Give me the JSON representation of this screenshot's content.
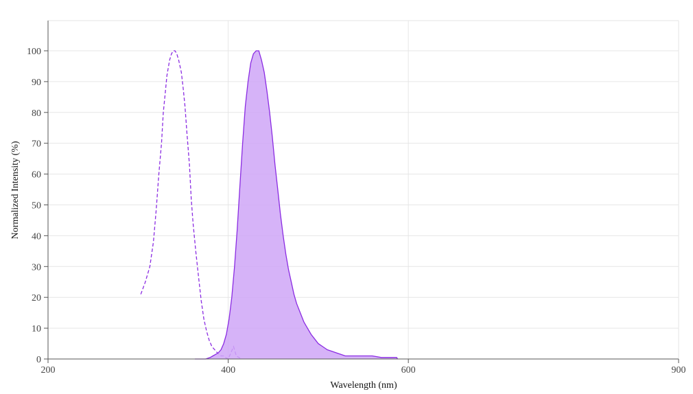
{
  "chart_data": {
    "type": "area",
    "title": "",
    "xlabel": "Wavelength (nm)",
    "ylabel": "Normalized Intensity (%)",
    "xlim": [
      200,
      900
    ],
    "ylim": [
      0,
      100
    ],
    "x_ticks": [
      200,
      400,
      600,
      900
    ],
    "y_ticks": [
      0,
      10,
      20,
      30,
      40,
      50,
      60,
      70,
      80,
      90,
      100
    ],
    "grid": true,
    "legend": "none",
    "colors": {
      "line": "#8a2be2",
      "fill": "#cfa6f7",
      "grid": "#e6e6e6",
      "axis": "#555555"
    },
    "series": [
      {
        "style": "dashed",
        "x": [
          303,
          308,
          313,
          317,
          320,
          323,
          326,
          328,
          330,
          332,
          335,
          337,
          339,
          341,
          343,
          345,
          348,
          350,
          352,
          354,
          357,
          359,
          361,
          364,
          367,
          370,
          373,
          376,
          379,
          382,
          385,
          388,
          390,
          392,
          395,
          397,
          400,
          403,
          406,
          409,
          412,
          415
        ],
        "y": [
          21,
          25,
          30,
          38,
          48,
          60,
          70,
          80,
          86,
          92,
          97,
          99,
          100,
          100,
          99,
          97,
          93,
          88,
          82,
          74,
          63,
          52,
          44,
          35,
          27,
          19,
          13,
          9,
          6,
          4,
          3,
          2,
          1.5,
          1,
          1,
          0.5,
          0,
          2,
          4,
          1,
          0.5,
          0
        ]
      },
      {
        "style": "filled",
        "x": [
          363,
          375,
          380,
          383,
          386,
          389,
          392,
          395,
          398,
          401,
          404,
          407,
          410,
          413,
          416,
          419,
          422,
          425,
          428,
          431,
          434,
          437,
          440,
          443,
          446,
          449,
          452,
          455,
          458,
          461,
          464,
          467,
          470,
          473,
          476,
          480,
          484,
          488,
          492,
          496,
          500,
          505,
          510,
          515,
          520,
          525,
          530,
          535,
          540,
          550,
          560,
          570,
          580,
          587,
          588
        ],
        "y": [
          0,
          0,
          0.5,
          1,
          1.5,
          2,
          3,
          5,
          8,
          13,
          20,
          30,
          42,
          56,
          70,
          82,
          90,
          96,
          99,
          100,
          100,
          97,
          93,
          87,
          80,
          72,
          63,
          55,
          47,
          40,
          34,
          29,
          25,
          21,
          18,
          15,
          12,
          10,
          8,
          6.5,
          5,
          4,
          3,
          2.5,
          2,
          1.5,
          1,
          1,
          1,
          1,
          1,
          0.5,
          0.5,
          0.5,
          0
        ]
      }
    ]
  }
}
